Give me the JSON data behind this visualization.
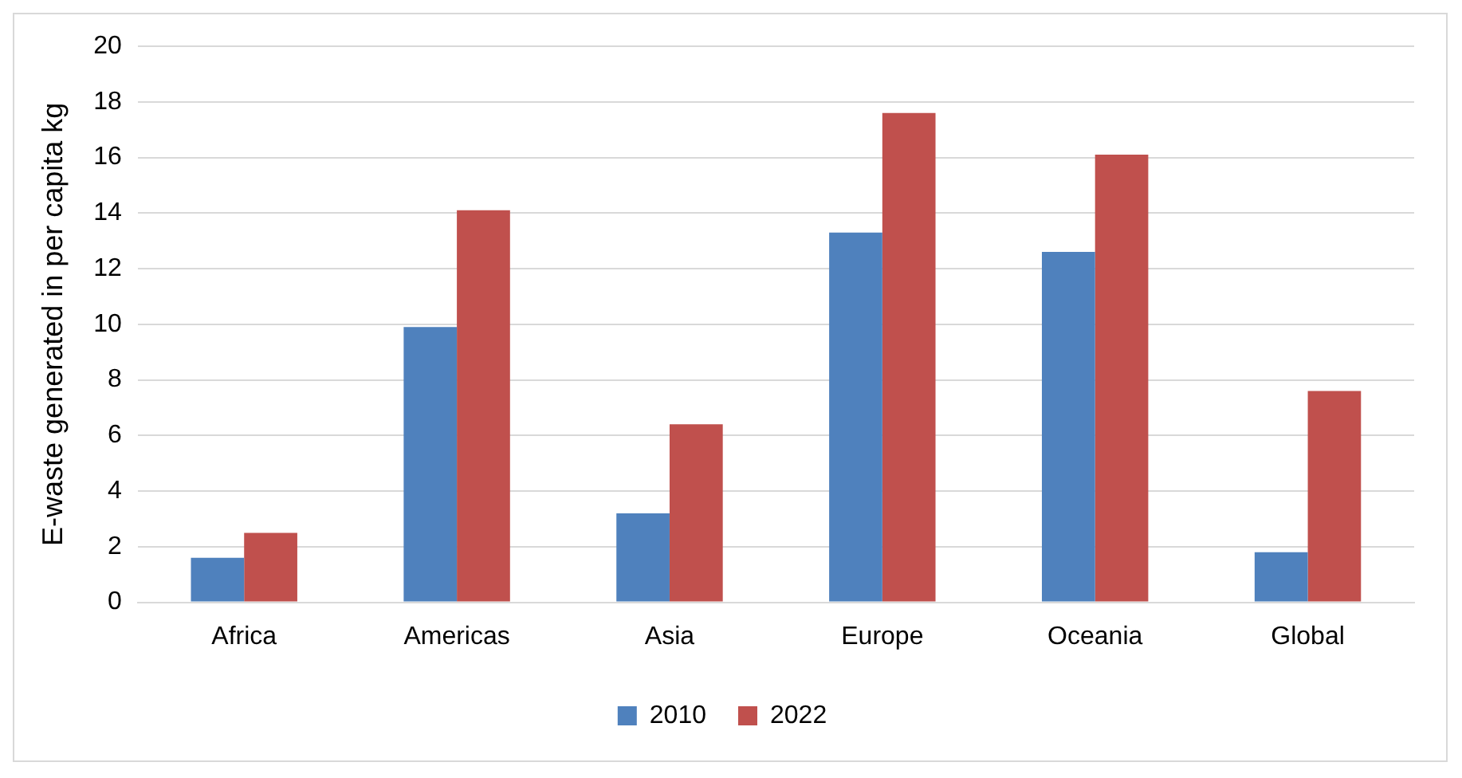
{
  "chart_data": {
    "type": "bar",
    "ylabel": "E-waste generated in per capita kg",
    "categories": [
      "Africa",
      "Americas",
      "Asia",
      "Europe",
      "Oceania",
      "Global"
    ],
    "series": [
      {
        "name": "2010",
        "color": "#4f81bd",
        "values": [
          1.6,
          9.9,
          3.2,
          13.3,
          12.6,
          1.8
        ]
      },
      {
        "name": "2022",
        "color": "#c0504d",
        "values": [
          2.5,
          14.1,
          6.4,
          17.6,
          16.1,
          7.6
        ]
      }
    ],
    "ylim": [
      0,
      20
    ],
    "yticks": [
      0,
      2,
      4,
      6,
      8,
      10,
      12,
      14,
      16,
      18,
      20
    ],
    "grid": "y",
    "legend": "bottom"
  }
}
